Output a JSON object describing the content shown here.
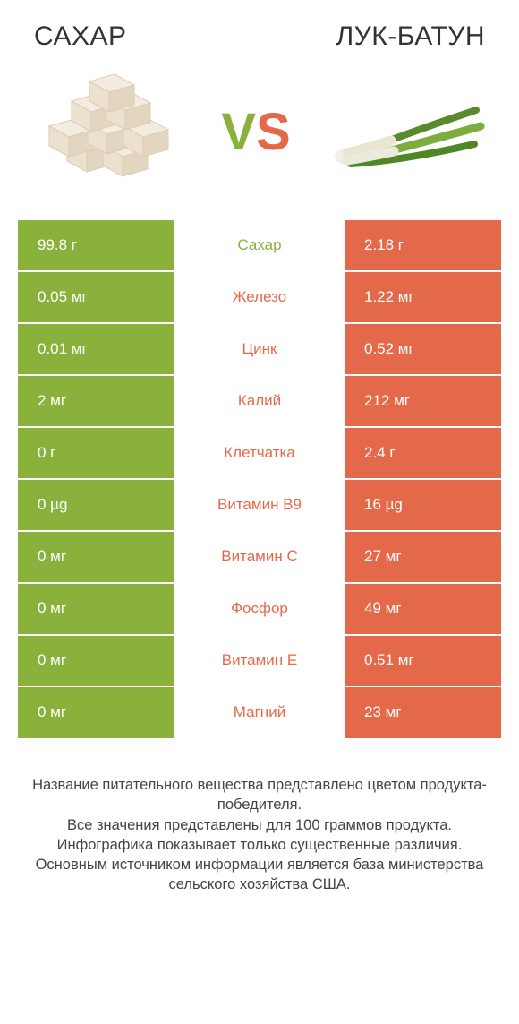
{
  "colors": {
    "left": "#8ab13b",
    "right": "#e4694a",
    "bg": "#ffffff",
    "text": "#333333"
  },
  "header": {
    "left": "САХАР",
    "right": "ЛУК-БАТУН"
  },
  "vs": {
    "v": "V",
    "s": "S"
  },
  "rows": [
    {
      "left": "99.8 г",
      "label": "Сахар",
      "right": "2.18 г",
      "winner": "left"
    },
    {
      "left": "0.05 мг",
      "label": "Железо",
      "right": "1.22 мг",
      "winner": "right"
    },
    {
      "left": "0.01 мг",
      "label": "Цинк",
      "right": "0.52 мг",
      "winner": "right"
    },
    {
      "left": "2 мг",
      "label": "Калий",
      "right": "212 мг",
      "winner": "right"
    },
    {
      "left": "0 г",
      "label": "Клетчатка",
      "right": "2.4 г",
      "winner": "right"
    },
    {
      "left": "0 µg",
      "label": "Витамин B9",
      "right": "16 µg",
      "winner": "right"
    },
    {
      "left": "0 мг",
      "label": "Витамин C",
      "right": "27 мг",
      "winner": "right"
    },
    {
      "left": "0 мг",
      "label": "Фосфор",
      "right": "49 мг",
      "winner": "right"
    },
    {
      "left": "0 мг",
      "label": "Витамин E",
      "right": "0.51 мг",
      "winner": "right"
    },
    {
      "left": "0 мг",
      "label": "Магний",
      "right": "23 мг",
      "winner": "right"
    }
  ],
  "footer": {
    "l1": "Название питательного вещества представлено цветом продукта-победителя.",
    "l2": "Все значения представлены для 100 граммов продукта.",
    "l3": "Инфографика показывает только существенные различия.",
    "l4": "Основным источником информации является база министерства сельского хозяйства США."
  }
}
